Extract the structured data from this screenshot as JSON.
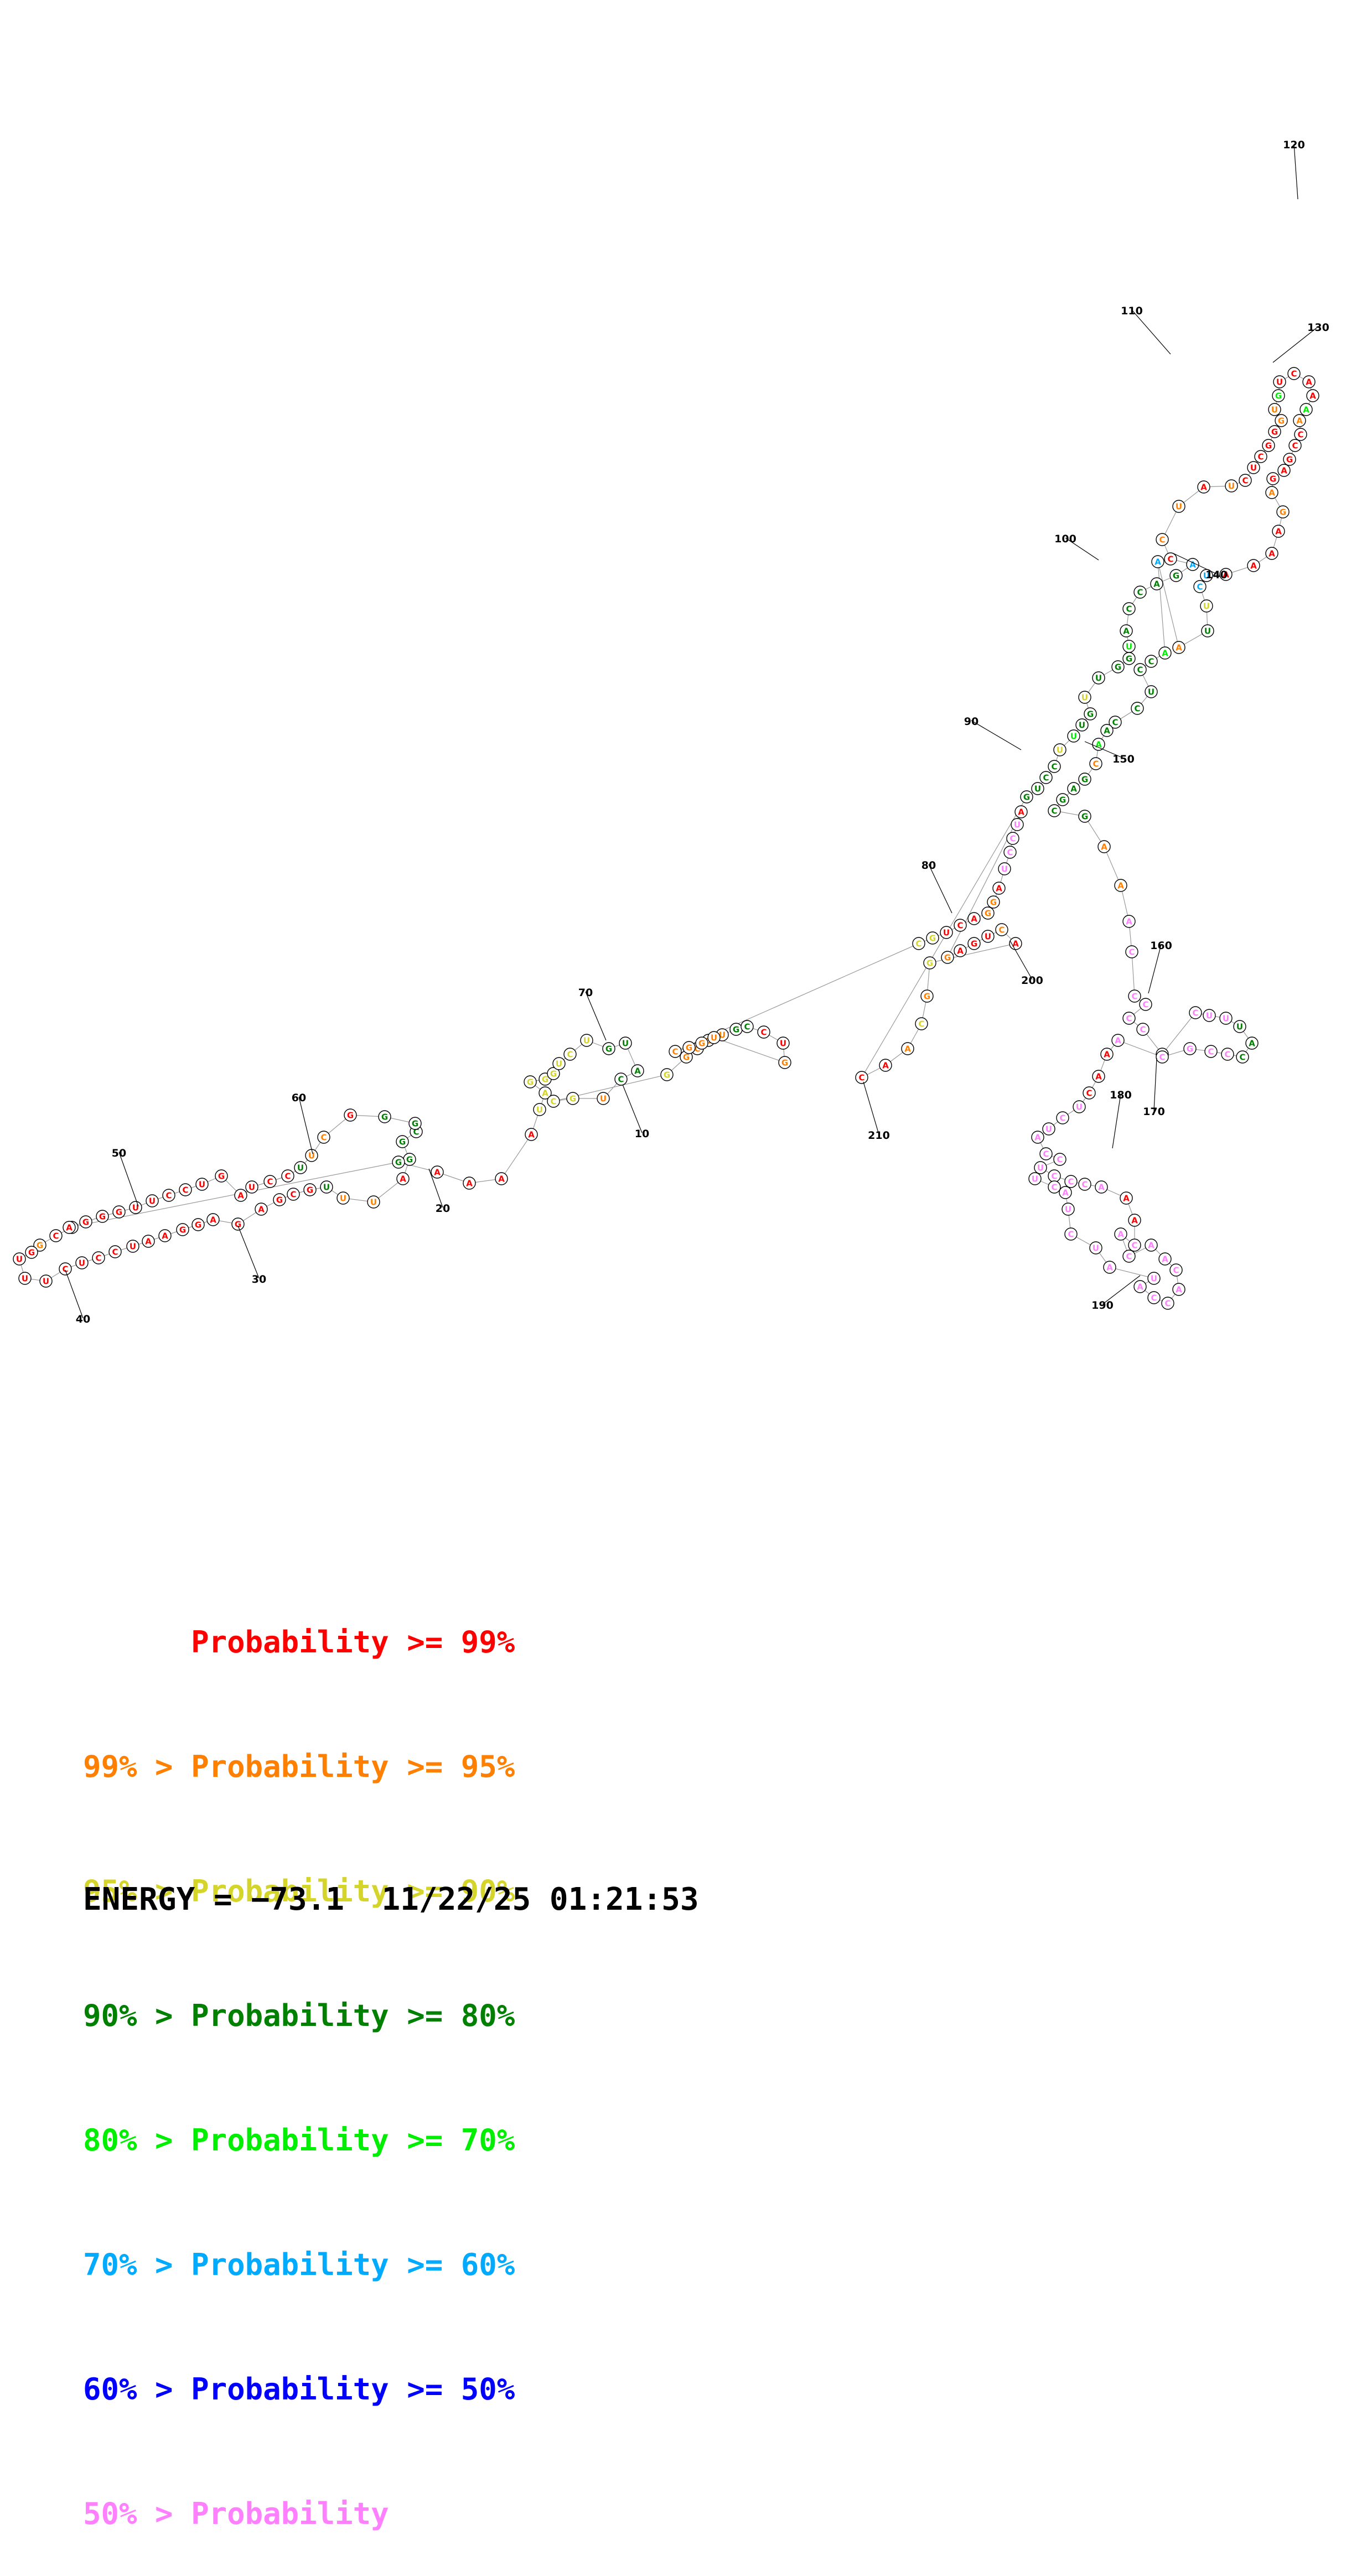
{
  "legend": [
    {
      "prefix": "",
      "label": "Probability",
      "suffix": ">= 99%",
      "color": "#ff0000"
    },
    {
      "prefix": "99% >",
      "label": "Probability",
      "suffix": ">= 95%",
      "color": "#ff8000"
    },
    {
      "prefix": "95% >",
      "label": "Probability",
      "suffix": ">= 90%",
      "color": "#d4d42a"
    },
    {
      "prefix": "90% >",
      "label": "Probability",
      "suffix": ">= 80%",
      "color": "#008000"
    },
    {
      "prefix": "80% >",
      "label": "Probability",
      "suffix": ">= 70%",
      "color": "#00ee00"
    },
    {
      "prefix": "70% >",
      "label": "Probability",
      "suffix": ">= 60%",
      "color": "#00aaff"
    },
    {
      "prefix": "60% >",
      "label": "Probability",
      "suffix": ">= 50%",
      "color": "#0000ff"
    },
    {
      "prefix": "50% >",
      "label": "Probability",
      "suffix": "",
      "color": "#ff80ff"
    }
  ],
  "footer": {
    "energy_label": "ENERGY = −73.1",
    "timestamp": "11/22/25 01:21:53"
  },
  "structure": {
    "length": 210,
    "index_labels": [
      "10",
      "20",
      "30",
      "40",
      "50",
      "60",
      "70",
      "80",
      "90",
      "100",
      "110",
      "120",
      "130",
      "140",
      "150",
      "160",
      "170",
      "180",
      "190",
      "200",
      "210"
    ],
    "probability_classes": {
      "c99": "#ff0000",
      "c95": "#ff8000",
      "c90": "#d4d42a",
      "c80": "#008000",
      "c70": "#00ee00",
      "c60": "#00aaff",
      "c50": "#0000ff",
      "clow": "#ff80ff"
    }
  }
}
